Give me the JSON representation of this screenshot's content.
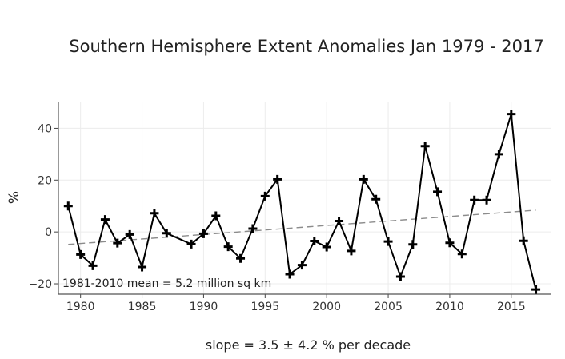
{
  "chart_data": {
    "type": "line",
    "title": "Southern Hemisphere Extent Anomalies Jan 1979 - 2017",
    "xlabel": "",
    "ylabel": "%",
    "xlim": [
      1978.2,
      2018.2
    ],
    "ylim": [
      -24,
      50
    ],
    "xticks": [
      1980,
      1985,
      1990,
      1995,
      2000,
      2005,
      2010,
      2015
    ],
    "yticks": [
      -20,
      0,
      20,
      40
    ],
    "ytick_labels": [
      "−20",
      "0",
      "20",
      "40"
    ],
    "grid": true,
    "series": [
      {
        "marker": "plus",
        "color": "#000000",
        "x": [
          1979,
          1980,
          1981,
          1982,
          1983,
          1984,
          1985,
          1986,
          1987,
          1989,
          1990,
          1991,
          1992,
          1993,
          1994,
          1995,
          1996,
          1997,
          1998,
          1999,
          2000,
          2001,
          2002,
          2003,
          2004,
          2005,
          2006,
          2007,
          2008,
          2009,
          2010,
          2011,
          2012,
          2013,
          2014,
          2015,
          2016,
          2017
        ],
        "y": [
          10,
          -8.7,
          -13,
          4.8,
          -4.3,
          -1,
          -13.5,
          7.2,
          -0.5,
          -4.7,
          -0.7,
          6.2,
          -5.7,
          -10.2,
          1.3,
          13.8,
          20.3,
          -16.3,
          -12.8,
          -3.5,
          -5.8,
          4.2,
          -7.3,
          20.3,
          12.6,
          -3.7,
          -17.2,
          -4.8,
          33.1,
          15.5,
          -4.2,
          -8.5,
          12.3,
          12.3,
          30,
          45.5,
          -3.4,
          -22.2
        ]
      }
    ],
    "trend": {
      "style": "dashed",
      "color": "#8c8c8c",
      "x": [
        1979,
        2017
      ],
      "y": [
        -4.8,
        8.4
      ]
    },
    "annotation": "1981-2010 mean = 5.2 million sq km",
    "footer": "slope = 3.5 ± 4.2 % per decade"
  }
}
